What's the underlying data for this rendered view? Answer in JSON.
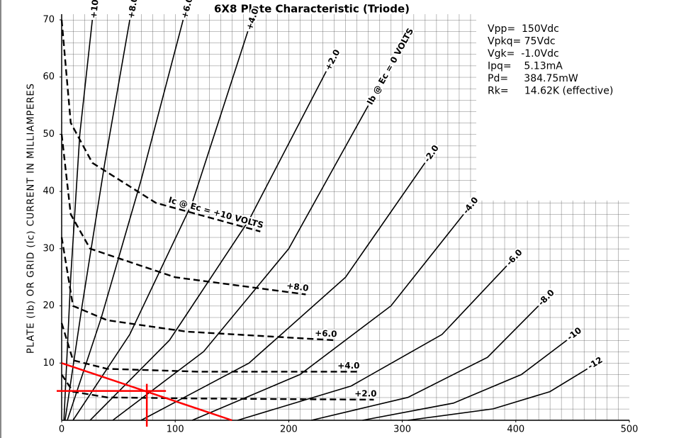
{
  "chart_data": {
    "type": "line",
    "title": "6X8 Plate Characteristic (Triode)",
    "y_label": "PLATE (Ib) OR GRID (Ic) CURRENT IN MILLIAMPERES",
    "annotations": [
      "Vpp=  150Vdc",
      "Vpkq= 75Vdc",
      "Vgk=  -1.0Vdc",
      "Ipq=    5.13mA",
      "Pd=     384.75mW",
      "Rk=     14.62K (effective)"
    ],
    "xlim": [
      0,
      500
    ],
    "ylim": [
      0,
      70
    ],
    "xticks": [
      0,
      100,
      200,
      300,
      400,
      500
    ],
    "yticks": [
      10,
      20,
      30,
      40,
      50,
      60,
      70
    ],
    "grid": true,
    "series": [
      {
        "name": "+10",
        "color": "#000000",
        "dashed": false,
        "x": [
          2,
          8,
          16,
          27
        ],
        "y": [
          0,
          25,
          50,
          70
        ]
      },
      {
        "name": "+8.0",
        "color": "#000000",
        "dashed": false,
        "x": [
          3,
          18,
          38,
          60
        ],
        "y": [
          0,
          20,
          45,
          70
        ]
      },
      {
        "name": "+6.0",
        "color": "#000000",
        "dashed": false,
        "x": [
          5,
          35,
          70,
          107
        ],
        "y": [
          0,
          18,
          42,
          70
        ]
      },
      {
        "name": "+4.0",
        "color": "#000000",
        "dashed": false,
        "x": [
          10,
          60,
          115,
          164
        ],
        "y": [
          0,
          15,
          38,
          68
        ]
      },
      {
        "name": "+2.0",
        "color": "#000000",
        "dashed": false,
        "x": [
          25,
          95,
          165,
          233
        ],
        "y": [
          0,
          14,
          35,
          61
        ]
      },
      {
        "name": "Ib @ Ec = 0 VOLTS",
        "color": "#000000",
        "dashed": false,
        "x": [
          45,
          125,
          200,
          270
        ],
        "y": [
          0,
          12,
          30,
          55
        ]
      },
      {
        "name": "-2.0",
        "color": "#000000",
        "dashed": false,
        "x": [
          70,
          165,
          250,
          320
        ],
        "y": [
          0,
          10,
          25,
          45
        ]
      },
      {
        "name": "-4.0",
        "color": "#000000",
        "dashed": false,
        "x": [
          115,
          210,
          290,
          354
        ],
        "y": [
          0,
          8,
          20,
          36
        ]
      },
      {
        "name": "-6.0",
        "color": "#000000",
        "dashed": false,
        "x": [
          155,
          255,
          335,
          392
        ],
        "y": [
          0,
          6,
          15,
          27
        ]
      },
      {
        "name": "-8.0",
        "color": "#000000",
        "dashed": false,
        "x": [
          220,
          305,
          375,
          420
        ],
        "y": [
          0,
          4,
          11,
          20
        ]
      },
      {
        "name": "-10",
        "color": "#000000",
        "dashed": false,
        "x": [
          265,
          345,
          405,
          445
        ],
        "y": [
          0,
          3,
          8,
          14
        ]
      },
      {
        "name": "-12",
        "color": "#000000",
        "dashed": false,
        "x": [
          305,
          380,
          430,
          463
        ],
        "y": [
          0,
          2,
          5,
          9
        ]
      },
      {
        "name": "Ic @ Ec = +10 VOLTS",
        "color": "#000000",
        "dashed": true,
        "x": [
          0,
          8,
          27,
          83,
          175
        ],
        "y": [
          70,
          52,
          45,
          38,
          33
        ]
      },
      {
        "name": "+8.0",
        "color": "#000000",
        "dashed": true,
        "x": [
          0,
          8,
          25,
          100,
          215
        ],
        "y": [
          50,
          36,
          30,
          25,
          22
        ]
      },
      {
        "name": "+6.0",
        "color": "#000000",
        "dashed": true,
        "x": [
          0,
          10,
          40,
          110,
          240
        ],
        "y": [
          32,
          20,
          17.5,
          15.5,
          14
        ]
      },
      {
        "name": "+4.0",
        "color": "#000000",
        "dashed": true,
        "x": [
          0,
          10,
          40,
          120,
          260
        ],
        "y": [
          17,
          10.5,
          9,
          8.5,
          8.5
        ]
      },
      {
        "name": "+2.0",
        "color": "#000000",
        "dashed": true,
        "x": [
          0,
          10,
          40,
          120,
          275
        ],
        "y": [
          8,
          5,
          4,
          3.8,
          3.6
        ]
      }
    ],
    "load_line": {
      "color": "#ff0000",
      "x": [
        0,
        150
      ],
      "y": [
        10,
        0
      ]
    },
    "q_point": {
      "color": "#ff0000",
      "x": 75,
      "y": 5.13
    }
  }
}
